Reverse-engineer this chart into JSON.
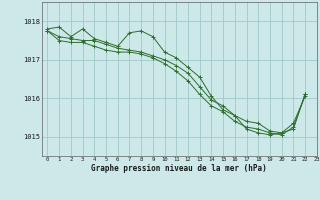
{
  "background_color": "#cce8e8",
  "grid_color": "#a0c8c8",
  "line_color": "#2d6e2d",
  "marker_color": "#2d6e2d",
  "xlabel": "Graphe pression niveau de la mer (hPa)",
  "xlim": [
    -0.5,
    23
  ],
  "ylim": [
    1014.5,
    1018.5
  ],
  "yticks": [
    1015,
    1016,
    1017,
    1018
  ],
  "xticks": [
    0,
    1,
    2,
    3,
    4,
    5,
    6,
    7,
    8,
    9,
    10,
    11,
    12,
    13,
    14,
    15,
    16,
    17,
    18,
    19,
    20,
    21,
    22,
    23
  ],
  "xtick_labels": [
    "0",
    "1",
    "2",
    "3",
    "4",
    "5",
    "6",
    "7",
    "8",
    "9",
    "10",
    "11",
    "12",
    "13",
    "14",
    "15",
    "16",
    "17",
    "18",
    "19",
    "20",
    "21",
    "22",
    "23"
  ],
  "series1": {
    "x": [
      0,
      1,
      2,
      3,
      4,
      5,
      6,
      7,
      8,
      9,
      10,
      11,
      12,
      13,
      14,
      15,
      16,
      17,
      18,
      19,
      20,
      21,
      22
    ],
    "y": [
      1017.8,
      1017.85,
      1017.6,
      1017.8,
      1017.55,
      1017.45,
      1017.35,
      1017.7,
      1017.75,
      1017.6,
      1017.2,
      1017.05,
      1016.8,
      1016.55,
      1016.05,
      1015.7,
      1015.55,
      1015.2,
      1015.1,
      1015.05,
      1015.1,
      1015.2,
      1016.1
    ]
  },
  "series2": {
    "x": [
      0,
      1,
      2,
      3,
      4,
      5,
      6,
      7,
      8,
      9,
      10,
      11,
      12,
      13,
      14,
      15,
      16,
      17,
      18,
      19,
      20,
      21,
      22
    ],
    "y": [
      1017.75,
      1017.6,
      1017.55,
      1017.5,
      1017.5,
      1017.4,
      1017.3,
      1017.25,
      1017.2,
      1017.1,
      1017.0,
      1016.85,
      1016.65,
      1016.3,
      1015.95,
      1015.8,
      1015.55,
      1015.4,
      1015.35,
      1015.15,
      1015.1,
      1015.35,
      1016.05
    ]
  },
  "series3": {
    "x": [
      0,
      1,
      2,
      3,
      4,
      5,
      6,
      7,
      8,
      9,
      10,
      11,
      12,
      13,
      14,
      15,
      16,
      17,
      18,
      19,
      20,
      21,
      22
    ],
    "y": [
      1017.75,
      1017.5,
      1017.45,
      1017.45,
      1017.35,
      1017.25,
      1017.2,
      1017.2,
      1017.15,
      1017.05,
      1016.9,
      1016.7,
      1016.45,
      1016.1,
      1015.8,
      1015.65,
      1015.4,
      1015.25,
      1015.2,
      1015.1,
      1015.05,
      1015.25,
      1016.1
    ]
  }
}
